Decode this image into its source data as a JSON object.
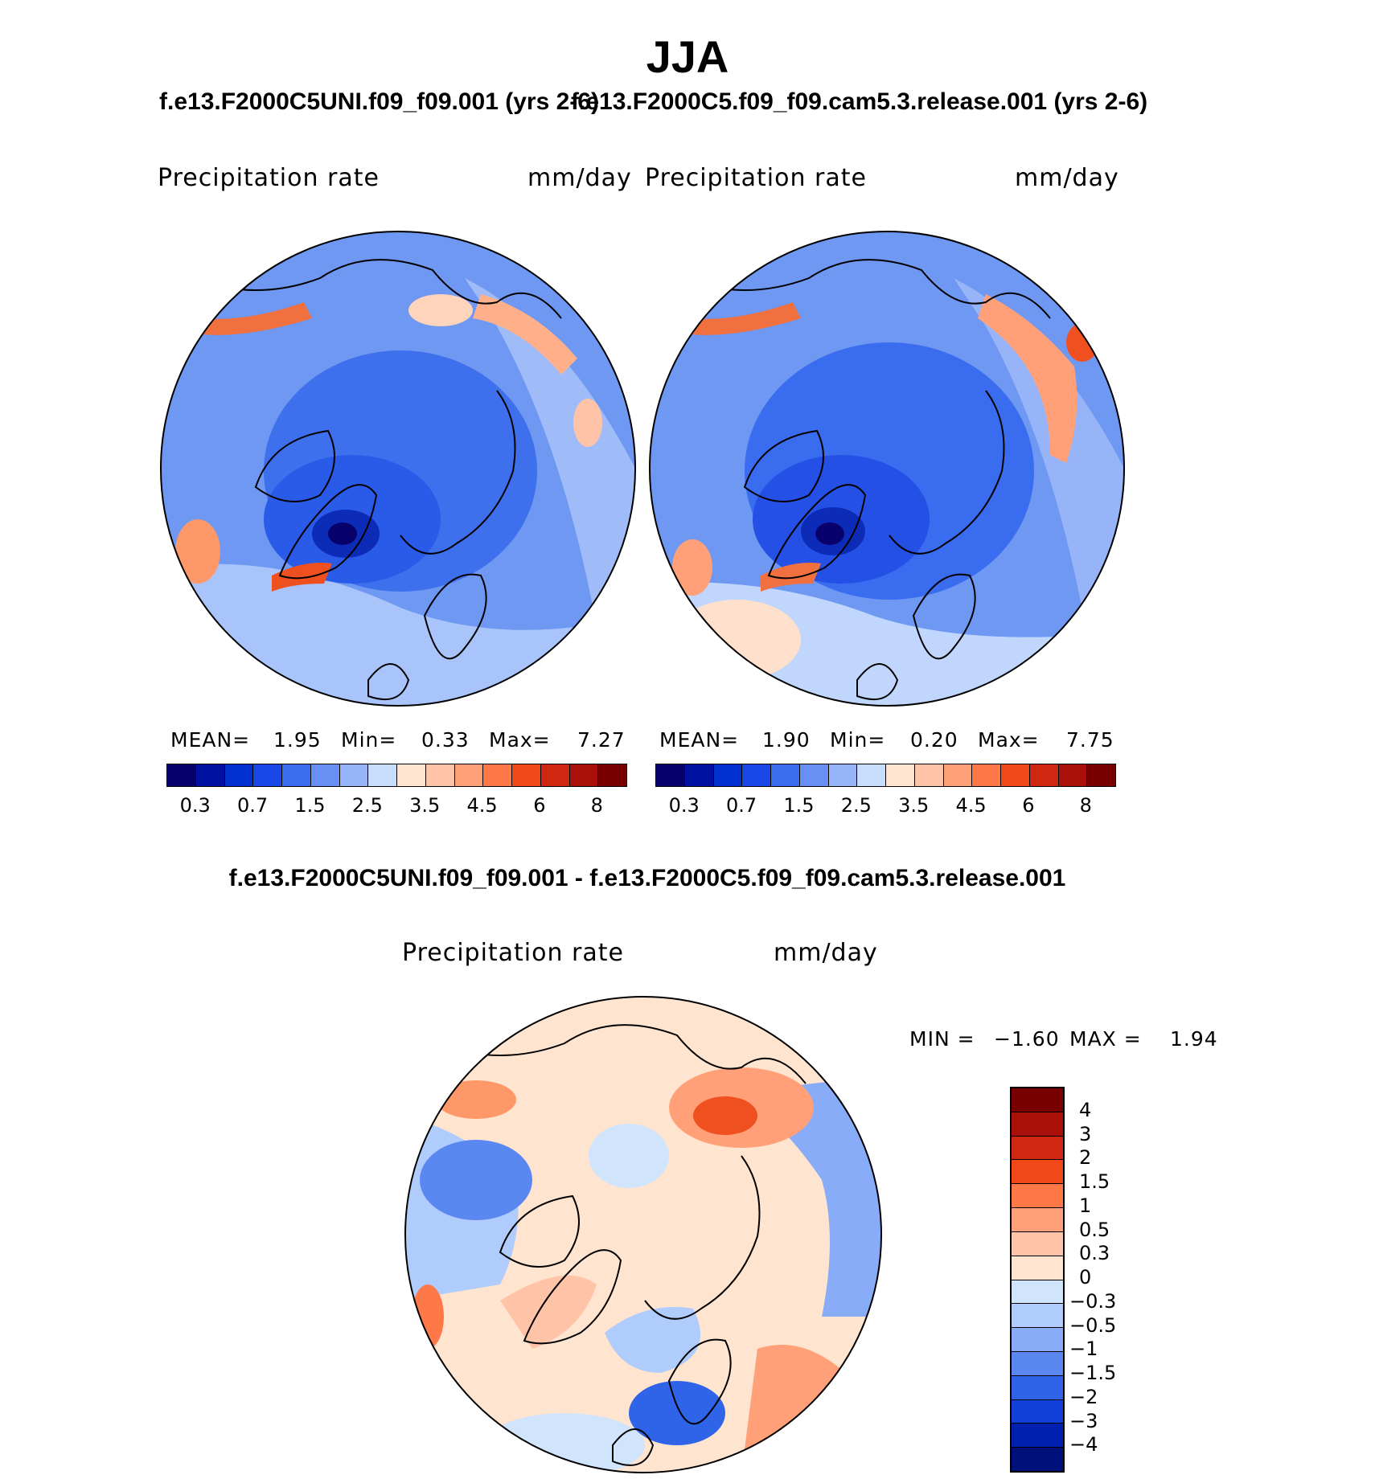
{
  "title": "JJA",
  "case_left": "f.e13.F2000C5UNI.f09_f09.001 (yrs 2-6)",
  "case_right": "f.e13.F2000C5.f09_f09.cam5.3.release.001 (yrs 2-6)",
  "diff_title": "f.e13.F2000C5UNI.f09_f09.001 - f.e13.F2000C5.f09_f09.cam5.3.release.001",
  "panels": [
    {
      "variable": "Precipitation  rate",
      "units": "mm/day",
      "mean_label": "MEAN=",
      "mean": "1.95",
      "min_label": "Min=",
      "min": "0.33",
      "max_label": "Max=",
      "max": "7.27"
    },
    {
      "variable": "Precipitation  rate",
      "units": "mm/day",
      "mean_label": "MEAN=",
      "mean": "1.90",
      "min_label": "Min=",
      "min": "0.20",
      "max_label": "Max=",
      "max": "7.75"
    }
  ],
  "diff_panel": {
    "variable": "Precipitation  rate",
    "units": "mm/day",
    "min_label": "MIN =",
    "min": "−1.60",
    "max_label": "MAX =",
    "max": "1.94"
  },
  "colorbar_abs": {
    "colors": [
      "#08006b",
      "#0010a0",
      "#0030d0",
      "#1848e8",
      "#3a6cf0",
      "#6890f4",
      "#98b4f8",
      "#c8dcfc",
      "#ffe4d0",
      "#ffc4a8",
      "#ffa078",
      "#ff7848",
      "#f04818",
      "#d02810",
      "#a81008",
      "#780000"
    ],
    "ticks": [
      "0.3",
      "0.7",
      "1.5",
      "2.5",
      "3.5",
      "4.5",
      "6",
      "8"
    ]
  },
  "colorbar_diff": {
    "colors": [
      "#780000",
      "#a81008",
      "#d02810",
      "#f04818",
      "#ff7848",
      "#ffa078",
      "#ffc4a8",
      "#ffe4d0",
      "#d0e4fc",
      "#b0ccfc",
      "#88acf8",
      "#5a88f0",
      "#3064e8",
      "#1040d8",
      "#0020b0",
      "#00107a"
    ],
    "ticks": [
      "4",
      "3",
      "2",
      "1.5",
      "1",
      "0.5",
      "0.3",
      "0",
      "−0.3",
      "−0.5",
      "−1",
      "−1.5",
      "−2",
      "−3",
      "−4"
    ]
  }
}
